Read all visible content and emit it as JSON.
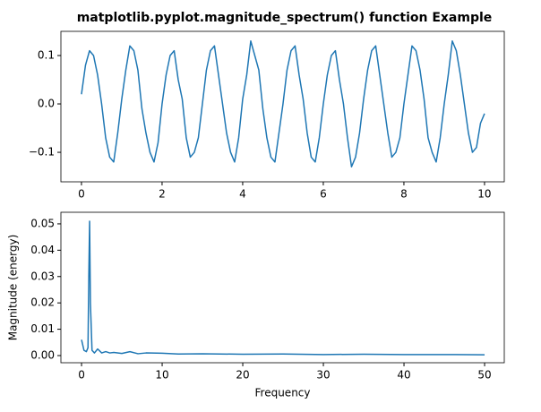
{
  "chart_data": [
    {
      "type": "line",
      "title": "matplotlib.pyplot.magnitude_spectrum() function Example",
      "x": [
        0,
        0.1,
        0.2,
        0.3,
        0.4,
        0.5,
        0.6,
        0.7,
        0.8,
        0.9,
        1,
        1.1,
        1.2,
        1.3,
        1.4,
        1.5,
        1.6,
        1.7,
        1.8,
        1.9,
        2,
        2.1,
        2.2,
        2.3,
        2.4,
        2.5,
        2.6,
        2.7,
        2.8,
        2.9,
        3,
        3.1,
        3.2,
        3.3,
        3.4,
        3.5,
        3.6,
        3.7,
        3.8,
        3.9,
        4,
        4.1,
        4.2,
        4.3,
        4.4,
        4.5,
        4.6,
        4.7,
        4.8,
        4.9,
        5,
        5.1,
        5.2,
        5.3,
        5.4,
        5.5,
        5.6,
        5.7,
        5.8,
        5.9,
        6,
        6.1,
        6.2,
        6.3,
        6.4,
        6.5,
        6.6,
        6.7,
        6.8,
        6.9,
        7,
        7.1,
        7.2,
        7.3,
        7.4,
        7.5,
        7.6,
        7.7,
        7.8,
        7.9,
        8,
        8.1,
        8.2,
        8.3,
        8.4,
        8.5,
        8.6,
        8.7,
        8.8,
        8.9,
        9,
        9.1,
        9.2,
        9.3,
        9.4,
        9.5,
        9.6,
        9.7,
        9.8,
        9.9,
        10
      ],
      "series": [
        {
          "color": "#1f77b4",
          "values": [
            0.02,
            0.08,
            0.11,
            0.1,
            0.06,
            0.0,
            -0.07,
            -0.11,
            -0.12,
            -0.06,
            0.01,
            0.07,
            0.12,
            0.11,
            0.07,
            -0.01,
            -0.06,
            -0.1,
            -0.12,
            -0.08,
            0.0,
            0.06,
            0.1,
            0.11,
            0.05,
            0.01,
            -0.07,
            -0.11,
            -0.1,
            -0.07,
            0.0,
            0.07,
            0.11,
            0.12,
            0.06,
            0.0,
            -0.06,
            -0.1,
            -0.12,
            -0.07,
            0.01,
            0.06,
            0.13,
            0.1,
            0.07,
            -0.01,
            -0.07,
            -0.11,
            -0.12,
            -0.06,
            0.0,
            0.07,
            0.11,
            0.12,
            0.06,
            0.01,
            -0.06,
            -0.11,
            -0.12,
            -0.07,
            0.0,
            0.06,
            0.1,
            0.11,
            0.05,
            0.0,
            -0.07,
            -0.13,
            -0.11,
            -0.06,
            0.01,
            0.07,
            0.11,
            0.12,
            0.06,
            0.0,
            -0.06,
            -0.11,
            -0.1,
            -0.07,
            0.0,
            0.06,
            0.12,
            0.11,
            0.07,
            0.01,
            -0.07,
            -0.1,
            -0.12,
            -0.07,
            0.0,
            0.06,
            0.13,
            0.11,
            0.06,
            0.0,
            -0.06,
            -0.1,
            -0.09,
            -0.04,
            -0.02
          ]
        }
      ],
      "xlim": [
        -0.51,
        10.49
      ],
      "ylim": [
        -0.161,
        0.15
      ],
      "xticks": [
        0,
        2,
        4,
        6,
        8,
        10
      ],
      "yticks": [
        {
          "value": -0.1,
          "label": "−0.1"
        },
        {
          "value": 0,
          "label": "0.0"
        },
        0.1
      ]
    },
    {
      "type": "line",
      "xlabel": "Frequency",
      "ylabel": "Magnitude (energy)",
      "x": [
        0,
        0.3,
        0.6,
        0.8,
        0.9,
        1.0,
        1.1,
        1.3,
        1.6,
        2,
        2.5,
        3,
        3.5,
        4,
        5,
        6,
        7,
        8,
        10,
        12,
        15,
        20,
        25,
        30,
        35,
        40,
        45,
        50
      ],
      "series": [
        {
          "color": "#1f77b4",
          "values": [
            0.006,
            0.002,
            0.0015,
            0.003,
            0.03,
            0.051,
            0.02,
            0.002,
            0.001,
            0.0025,
            0.001,
            0.0015,
            0.001,
            0.0012,
            0.0008,
            0.0015,
            0.0007,
            0.001,
            0.0009,
            0.0006,
            0.0007,
            0.0005,
            0.0006,
            0.0004,
            0.0005,
            0.0004,
            0.0004,
            0.0003
          ]
        }
      ],
      "xlim": [
        -2.56,
        52.44
      ],
      "ylim": [
        -0.00272,
        0.0544
      ],
      "xticks": [
        0,
        10,
        20,
        30,
        40,
        50
      ],
      "yticks": [
        {
          "value": 0,
          "label": "0.00"
        },
        {
          "value": 0.01,
          "label": "0.01"
        },
        {
          "value": 0.02,
          "label": "0.02"
        },
        {
          "value": 0.03,
          "label": "0.03"
        },
        {
          "value": 0.04,
          "label": "0.04"
        },
        {
          "value": 0.05,
          "label": "0.05"
        }
      ]
    }
  ]
}
